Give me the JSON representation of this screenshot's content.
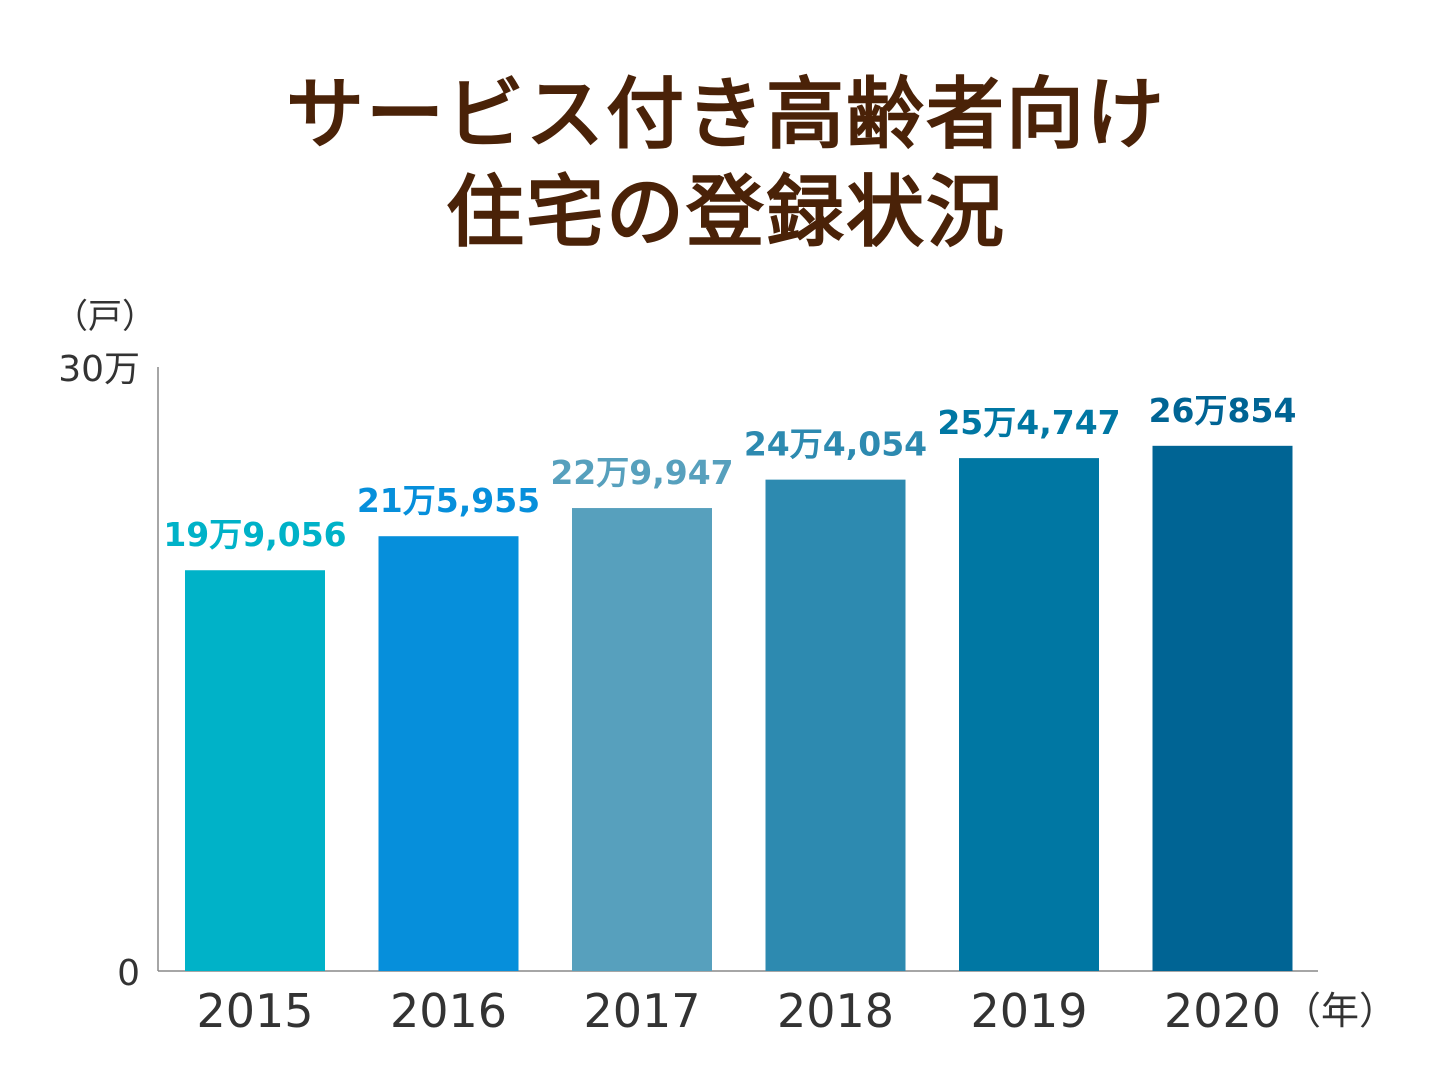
{
  "title_line1": "サービス付き高齢者向け",
  "title_line2": "住宅の登録状況",
  "chart_data": {
    "type": "bar",
    "title": "サービス付き高齢者向け住宅の登録状況",
    "y_unit_label": "（戸）",
    "x_unit_label": "（年）",
    "ylim": [
      0,
      300000
    ],
    "y_tick_labels": [
      "0",
      "30万"
    ],
    "y_tick_values": [
      0,
      300000
    ],
    "categories": [
      "2015",
      "2016",
      "2017",
      "2018",
      "2019",
      "2020"
    ],
    "values": [
      199056,
      215955,
      229947,
      244054,
      254747,
      260854
    ],
    "value_labels": [
      "19万9,056",
      "21万5,955",
      "22万9,947",
      "24万4,054",
      "25万4,747",
      "26万854"
    ],
    "colors": [
      "#00b2c8",
      "#068fdb",
      "#57a0bd",
      "#2d8ab0",
      "#0077a3",
      "#006494"
    ]
  }
}
